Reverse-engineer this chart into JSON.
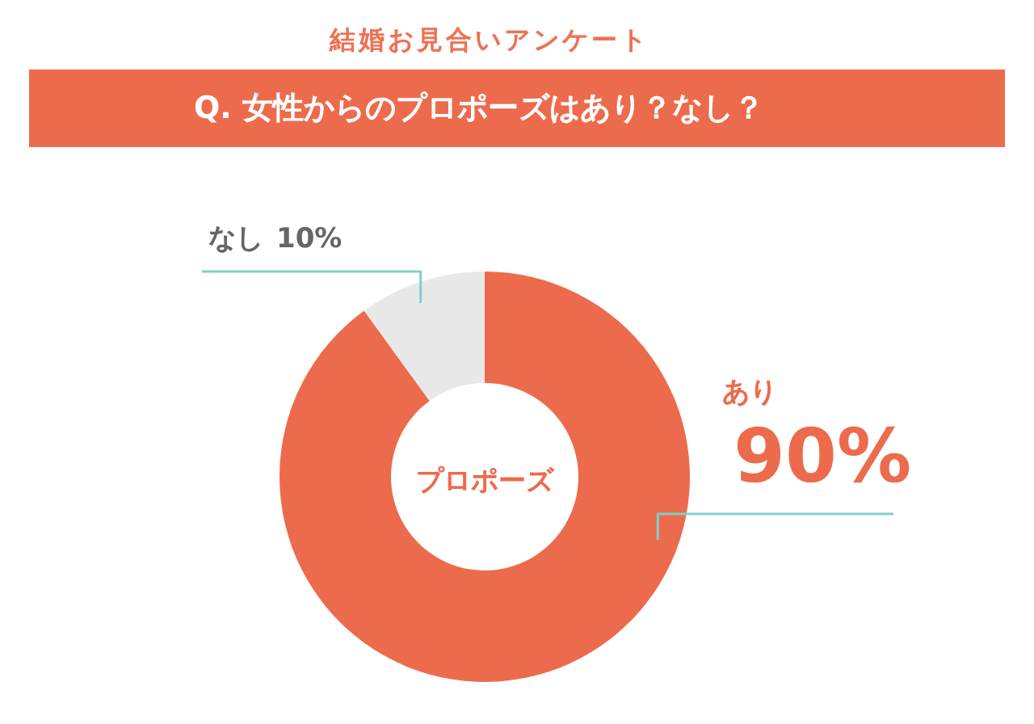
{
  "chart_data": {
    "type": "donut",
    "title": "結婚お見合いアンケート",
    "subtitle": "Q. 女性からのプロポーズはあり？なし？",
    "categories": [
      "あり",
      "なし"
    ],
    "values": [
      90,
      10
    ],
    "colors": [
      "#ec6b4c",
      "#e8e8e8"
    ],
    "value_labels": [
      "90%",
      "10%"
    ],
    "annotations": [
      "プロポーズ"
    ]
  }
}
